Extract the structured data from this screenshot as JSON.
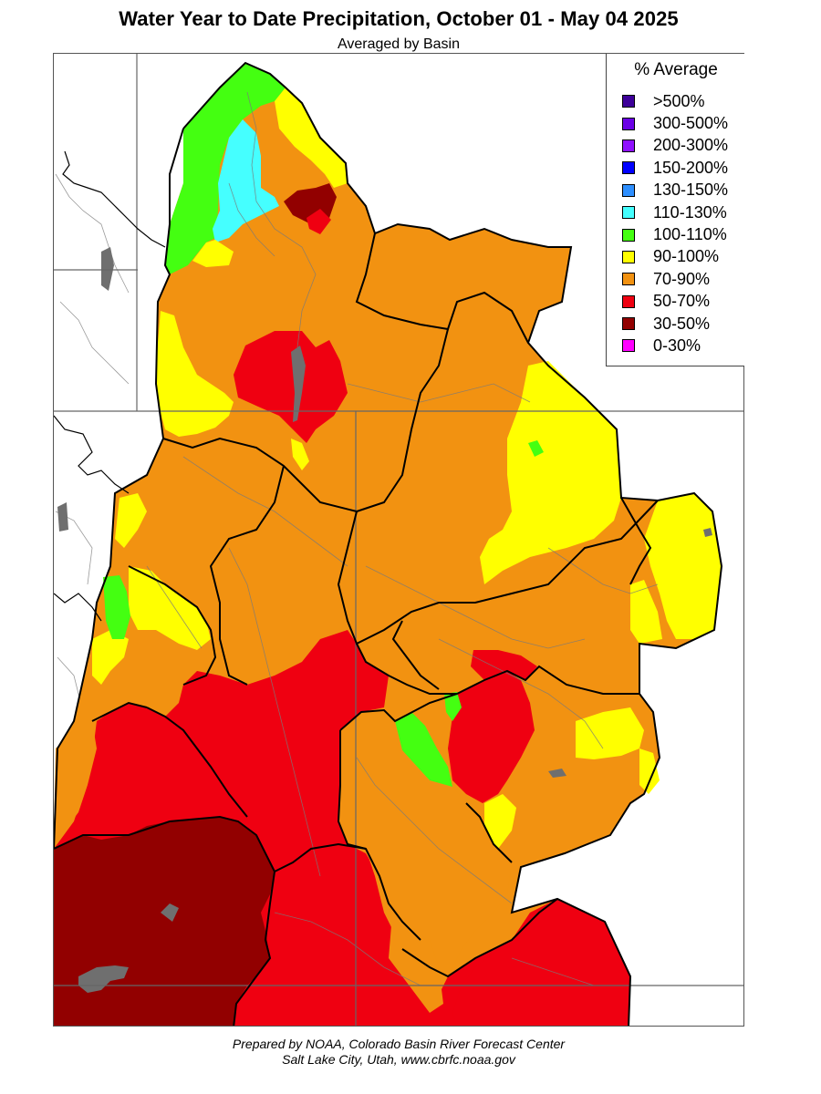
{
  "map": {
    "title": "Water Year to Date Precipitation, October 01  - May 04 2025",
    "subtitle": "Averaged by Basin",
    "credit_line_1": "Prepared by NOAA, Colorado Basin River Forecast Center",
    "credit_line_2": "Salt Lake City, Utah, www.cbrfc.noaa.gov"
  },
  "legend": {
    "title": "% Average",
    "items": [
      {
        "label": ">500%",
        "color": "#3d0099"
      },
      {
        "label": "300-500%",
        "color": "#6a00e6"
      },
      {
        "label": "200-300%",
        "color": "#8f10ff"
      },
      {
        "label": "150-200%",
        "color": "#0000ff"
      },
      {
        "label": "130-150%",
        "color": "#2e8fff"
      },
      {
        "label": "110-130%",
        "color": "#45ffff"
      },
      {
        "label": "100-110%",
        "color": "#44ff11"
      },
      {
        "label": "90-100%",
        "color": "#ffff00"
      },
      {
        "label": "70-90%",
        "color": "#f29211"
      },
      {
        "label": "50-70%",
        "color": "#ef0011"
      },
      {
        "label": "30-50%",
        "color": "#920000"
      },
      {
        "label": "0-30%",
        "color": "#ff00ff"
      }
    ]
  },
  "colors": {
    "lakes": "#6f6f6f",
    "basin_border": "#000000",
    "state_border": "#666666"
  }
}
